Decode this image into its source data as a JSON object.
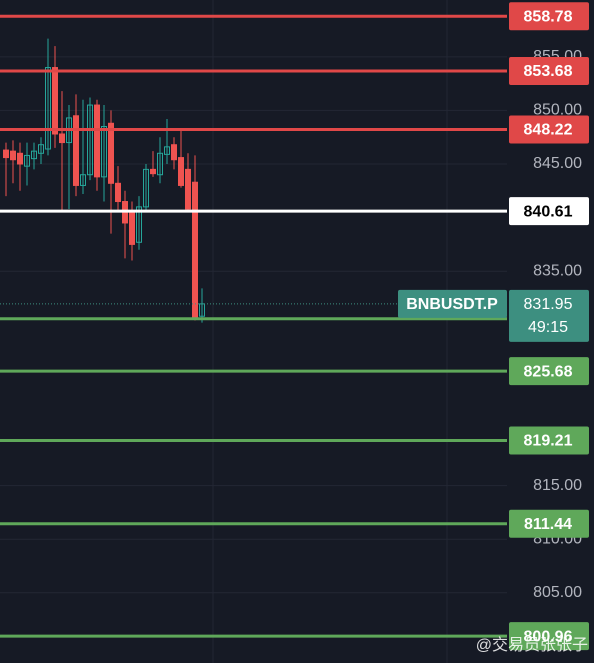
{
  "chart_data": {
    "type": "candlestick",
    "ylim": [
      798.45,
      860.3
    ],
    "yticks": [
      {
        "value": 855,
        "label": "855.00"
      },
      {
        "value": 850,
        "label": "850.00"
      },
      {
        "value": 845,
        "label": "845.00"
      },
      {
        "value": 835,
        "label": "835.00"
      },
      {
        "value": 815,
        "label": "815.00"
      },
      {
        "value": 810,
        "label": "810.00"
      },
      {
        "value": 805,
        "label": "805.00"
      }
    ],
    "grid": true,
    "up_color": "#26a69a",
    "down_color": "#ef5350",
    "open": [
      846.3,
      846.2,
      846,
      844.8,
      845.5,
      846,
      846.4,
      854,
      847.8,
      847,
      849.5,
      843,
      844,
      850.5,
      843.8,
      848.8,
      843.2,
      841.5,
      840.6,
      837.7,
      841,
      844.5,
      844,
      845.9,
      846.8,
      845.6,
      844.5,
      843.3,
      830.8
    ],
    "high": [
      847,
      847.2,
      847,
      847,
      847,
      847.5,
      856.7,
      856,
      851.8,
      850.5,
      851.5,
      851,
      851.2,
      851,
      850.5,
      850,
      844.8,
      842.5,
      841.5,
      842,
      845,
      846.2,
      847.5,
      849.2,
      847.5,
      848.3,
      846,
      845.8,
      833.4
    ],
    "low": [
      842,
      843.2,
      842.5,
      843,
      844.5,
      845,
      845.8,
      846.5,
      840.5,
      840.8,
      842,
      842.2,
      843.5,
      842.5,
      841.5,
      838.5,
      840.5,
      836.2,
      836,
      837,
      840.5,
      843.8,
      843.2,
      845,
      844.5,
      842.8,
      840.5,
      830.4,
      830.2
    ],
    "close": [
      845.6,
      845.4,
      845,
      845.8,
      846.2,
      846.8,
      854,
      847.8,
      847,
      849.3,
      843,
      844,
      850.5,
      843.8,
      848.5,
      843.2,
      841.5,
      839.5,
      837.5,
      841,
      844.5,
      844.1,
      846,
      846.6,
      845.4,
      843,
      840.8,
      830.7,
      831.95
    ],
    "levels": [
      {
        "value": 858.78,
        "color": "#e04848"
      },
      {
        "value": 853.68,
        "color": "#e04848"
      },
      {
        "value": 848.22,
        "color": "#e04848"
      },
      {
        "value": 840.61,
        "color": "#ffffff"
      },
      {
        "value": 830.56,
        "color": "#5fa85a"
      },
      {
        "value": 825.68,
        "color": "#5fa85a"
      },
      {
        "value": 819.21,
        "color": "#5fa85a"
      },
      {
        "value": 811.44,
        "color": "#5fa85a"
      },
      {
        "value": 800.96,
        "color": "#5fa85a"
      }
    ],
    "last_price": {
      "symbol": "BNBUSDT.P",
      "value": 831.95,
      "countdown": "49:15",
      "color": "#3d8f80"
    },
    "watermark": "@交易员张张子"
  }
}
